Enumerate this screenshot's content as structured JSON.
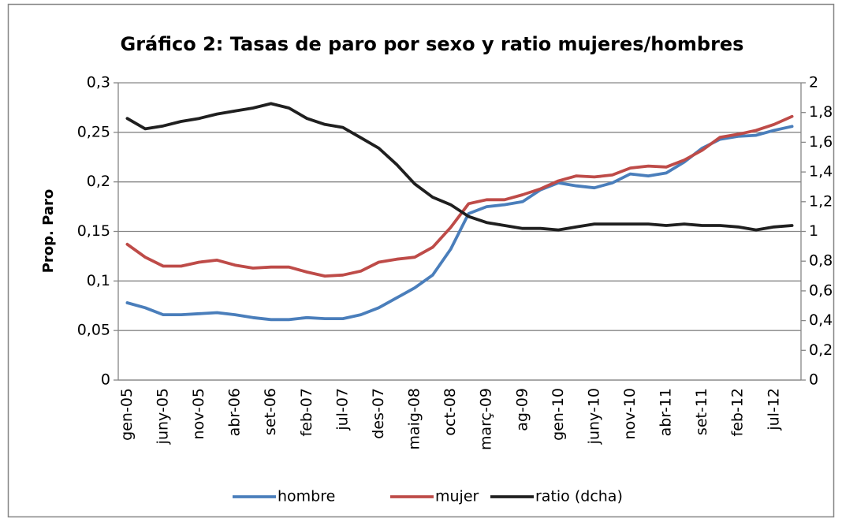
{
  "chart_data": {
    "type": "line",
    "title": "Gráfico 2: Tasas de paro por sexo y ratio mujeres/hombres",
    "y_label": "Prop. Paro",
    "categories": [
      "gen-05",
      null,
      "juny-05",
      null,
      "nov-05",
      null,
      "abr-06",
      null,
      "set-06",
      null,
      "feb-07",
      null,
      "jul-07",
      null,
      "des-07",
      null,
      "maig-08",
      null,
      "oct-08",
      null,
      "març-09",
      null,
      "ag-09",
      null,
      "gen-10",
      null,
      "juny-10",
      null,
      "nov-10",
      null,
      "abr-11",
      null,
      "set-11",
      null,
      "feb-12",
      null,
      "jul-12",
      null
    ],
    "series": [
      {
        "name": "hombre",
        "color": "#4a7ebb",
        "values": [
          0.078,
          0.073,
          0.066,
          0.066,
          0.067,
          0.068,
          0.066,
          0.063,
          0.061,
          0.061,
          0.063,
          0.062,
          0.062,
          0.066,
          0.073,
          0.083,
          0.093,
          0.106,
          0.132,
          0.168,
          0.175,
          0.177,
          0.18,
          0.192,
          0.199,
          0.196,
          0.194,
          0.199,
          0.208,
          0.206,
          0.209,
          0.22,
          0.234,
          0.243,
          0.246,
          0.247,
          0.252,
          0.256
        ]
      },
      {
        "name": "mujer",
        "color": "#be4b48",
        "values": [
          0.137,
          0.124,
          0.115,
          0.115,
          0.119,
          0.121,
          0.116,
          0.113,
          0.114,
          0.114,
          0.109,
          0.105,
          0.106,
          0.11,
          0.119,
          0.122,
          0.124,
          0.134,
          0.154,
          0.178,
          0.182,
          0.182,
          0.187,
          0.193,
          0.201,
          0.206,
          0.205,
          0.207,
          0.214,
          0.216,
          0.215,
          0.222,
          0.232,
          0.245,
          0.248,
          0.252,
          0.258,
          0.266
        ]
      },
      {
        "name": "ratio (dcha)",
        "color": "#1f1f1f",
        "axis": "y2",
        "values": [
          1.76,
          1.69,
          1.71,
          1.74,
          1.76,
          1.79,
          1.81,
          1.83,
          1.86,
          1.83,
          1.76,
          1.72,
          1.7,
          1.63,
          1.56,
          1.45,
          1.32,
          1.23,
          1.18,
          1.1,
          1.06,
          1.04,
          1.02,
          1.02,
          1.01,
          1.03,
          1.05,
          1.05,
          1.05,
          1.05,
          1.04,
          1.05,
          1.04,
          1.04,
          1.03,
          1.01,
          1.03,
          1.04
        ]
      }
    ],
    "ylim": [
      0,
      0.3
    ],
    "yticks": [
      0,
      {
        "value": 0.05,
        "label": "0,05"
      },
      {
        "value": 0.1,
        "label": "0,1"
      },
      {
        "value": 0.15,
        "label": "0,15"
      },
      {
        "value": 0.2,
        "label": "0,2"
      },
      {
        "value": 0.25,
        "label": "0,25"
      },
      {
        "value": 0.3,
        "label": "0,3"
      }
    ],
    "y2lim": [
      0,
      2
    ],
    "y2ticks": [
      0,
      {
        "value": 0.2,
        "label": "0,2"
      },
      {
        "value": 0.4,
        "label": "0,4"
      },
      {
        "value": 0.6,
        "label": "0,6"
      },
      {
        "value": 0.8,
        "label": "0,8"
      },
      1,
      {
        "value": 1.2,
        "label": "1,2"
      },
      {
        "value": 1.4,
        "label": "1,4"
      },
      {
        "value": 1.6,
        "label": "1,6"
      },
      {
        "value": 1.8,
        "label": "1,8"
      },
      2
    ],
    "grid": true,
    "legend": "bottom"
  }
}
